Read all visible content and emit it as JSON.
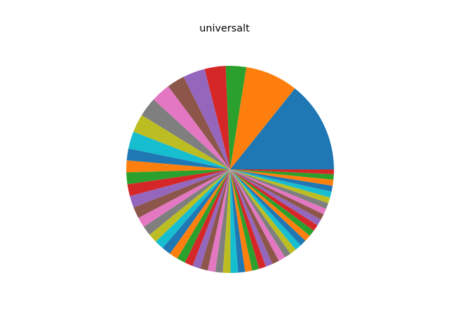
{
  "chart_data": {
    "type": "pie",
    "title": "universalt",
    "start_angle_deg": 0,
    "direction": "counterclockwise",
    "legend": "none",
    "palette": [
      "#1f77b4",
      "#ff7f0e",
      "#2ca02c",
      "#d62728",
      "#9467bd",
      "#8c564b",
      "#e377c2",
      "#7f7f7f",
      "#bcbd22",
      "#17becf"
    ],
    "values": [
      17.0,
      9.8,
      3.8,
      3.9,
      4.1,
      3.3,
      3.6,
      3.6,
      3.4,
      3.2,
      2.2,
      2.2,
      2.2,
      2.2,
      2.2,
      2.1,
      1.9,
      1.8,
      1.7,
      1.7,
      1.7,
      1.6,
      1.6,
      1.5,
      1.5,
      1.4,
      1.4,
      1.4,
      1.4,
      1.4,
      1.3,
      1.3,
      1.3,
      1.3,
      1.3,
      1.3,
      1.3,
      1.2,
      1.2,
      1.2,
      1.2,
      1.2,
      1.2,
      1.2,
      1.2,
      1.1,
      1.1,
      1.1,
      1.1,
      1.1,
      1.1,
      1.1,
      1.0,
      0.9
    ]
  }
}
